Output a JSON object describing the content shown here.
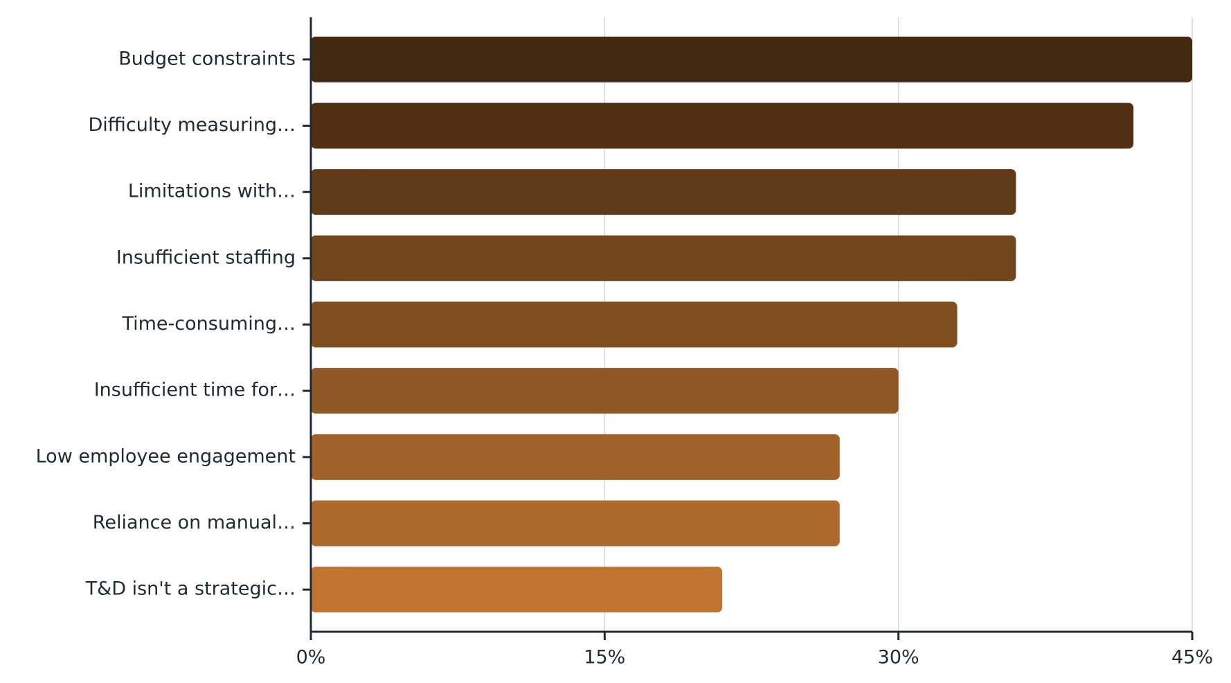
{
  "chart_data": {
    "type": "bar",
    "orientation": "horizontal",
    "categories": [
      "Budget constraints",
      "Difficulty measuring…",
      "Limitations with…",
      "Insufficient staffing",
      "Time-consuming…",
      "Insufficient time for…",
      "Low employee engagement",
      "Reliance on manual…",
      "T&D isn't a strategic…"
    ],
    "values": [
      45,
      42,
      36,
      36,
      33,
      30,
      27,
      27,
      21
    ],
    "colors": [
      "#422910",
      "#513014",
      "#613a18",
      "#72461d",
      "#804f20",
      "#8f5824",
      "#a06228",
      "#ae6a2c",
      "#bf7430"
    ],
    "xlim": [
      0,
      45
    ],
    "xticks": [
      {
        "value": 0,
        "label": "0%"
      },
      {
        "value": 15,
        "label": "15%"
      },
      {
        "value": 30,
        "label": "30%"
      },
      {
        "value": 45,
        "label": "45%"
      }
    ],
    "grid": true
  }
}
